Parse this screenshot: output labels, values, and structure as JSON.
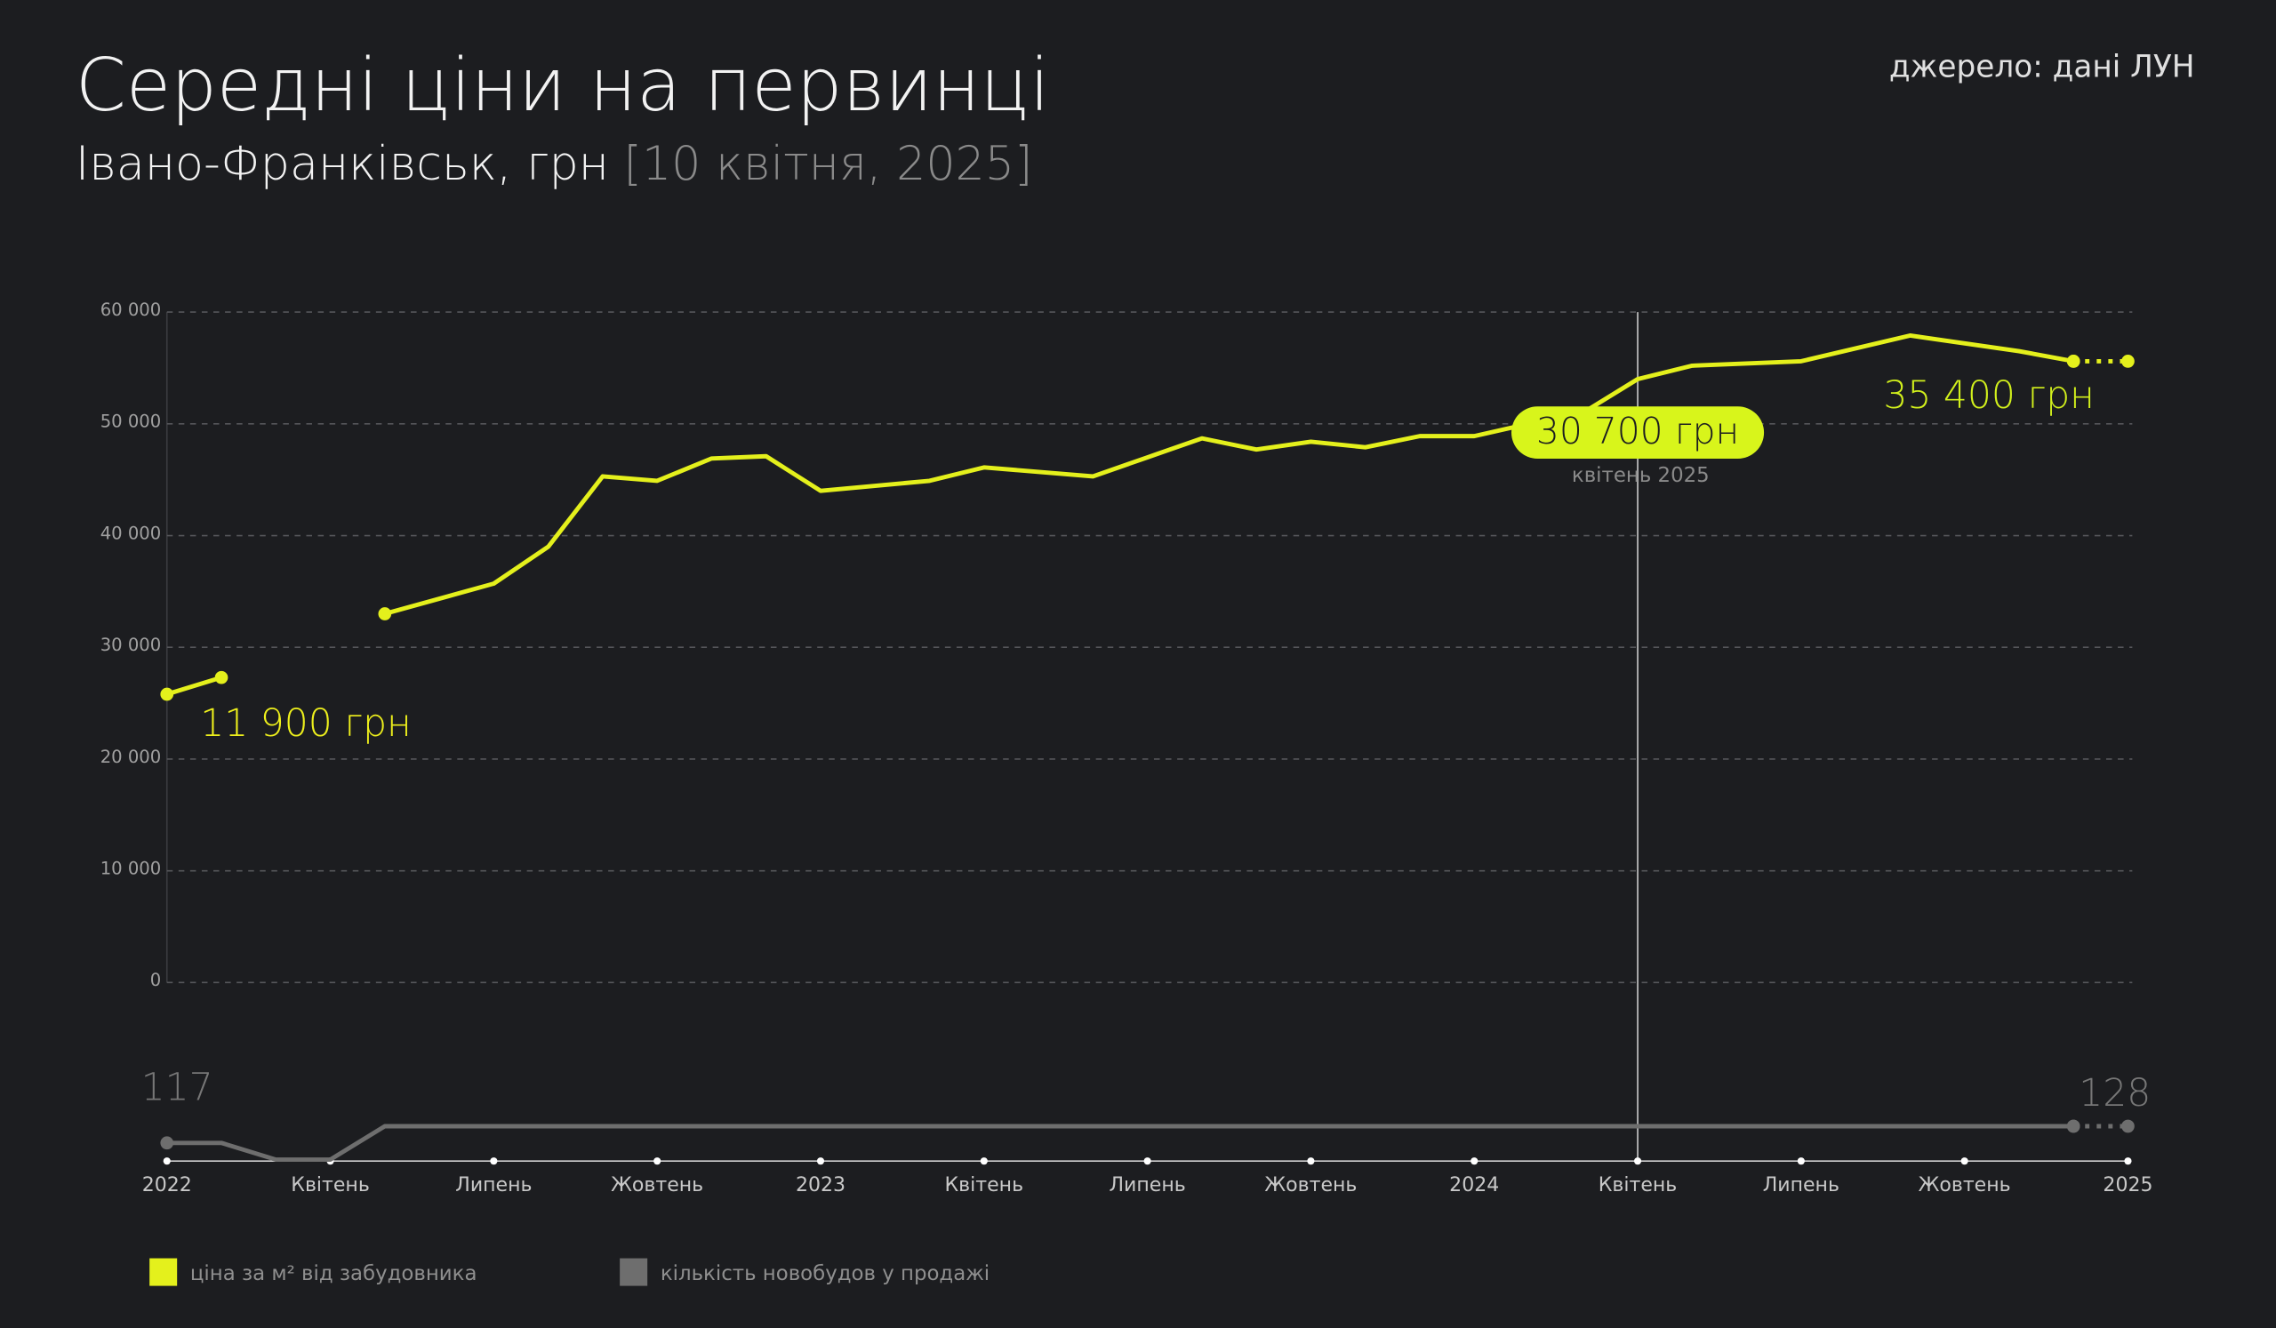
{
  "chart_data": {
    "type": "line",
    "title": "Середні ціни на первинці",
    "subtitle": "Івано-Франківськ, грн",
    "date": "[10 квітня, 2025]",
    "source": "джерело: дані ЛУН",
    "xlim": [
      "2022-01",
      "2025-01"
    ],
    "xticks": [
      {
        "value": "2022-01",
        "label": "2022"
      },
      {
        "value": "2022-04",
        "label": "Квітень"
      },
      {
        "value": "2022-07",
        "label": "Липень"
      },
      {
        "value": "2022-10",
        "label": "Жовтень"
      },
      {
        "value": "2023-01",
        "label": "2023"
      },
      {
        "value": "2023-04",
        "label": "Квітень"
      },
      {
        "value": "2023-07",
        "label": "Липень"
      },
      {
        "value": "2023-10",
        "label": "Жовтень"
      },
      {
        "value": "2024-01",
        "label": "2024"
      },
      {
        "value": "2024-04",
        "label": "Квітень"
      },
      {
        "value": "2024-07",
        "label": "Липень"
      },
      {
        "value": "2024-10",
        "label": "Жовтень"
      },
      {
        "value": "2025-01",
        "label": "2025"
      }
    ],
    "ylim": [
      0,
      60000
    ],
    "yticks": [
      0,
      {
        "value": 10000,
        "label": "10 000"
      },
      {
        "value": 20000,
        "label": "20 000"
      },
      {
        "value": 30000,
        "label": "30 000"
      },
      {
        "value": 40000,
        "label": "40 000"
      },
      {
        "value": 50000,
        "label": "50 000"
      },
      {
        "value": 60000,
        "label": "60 000"
      }
    ],
    "y2lim": [
      106,
      128
    ],
    "grid": true,
    "series": [
      {
        "name": "ціна за м² від забудовника",
        "color": "#e4f01c",
        "x": [
          "2022-01",
          "2022-02",
          "2022-03",
          "2022-05",
          "2022-07",
          "2022-08",
          "2022-09",
          "2022-10",
          "2022-11",
          "2022-12",
          "2023-01",
          "2023-03",
          "2023-04",
          "2023-06",
          "2023-07",
          "2023-08",
          "2023-09",
          "2023-10",
          "2023-11",
          "2023-12",
          "2024-01",
          "2024-02",
          "2024-03",
          "2024-04",
          "2024-05",
          "2024-07",
          "2024-09",
          "2024-11",
          "2024-12"
        ],
        "values": [
          25800,
          27300,
          null,
          33000,
          35700,
          39000,
          45300,
          44900,
          46900,
          47100,
          44000,
          44900,
          46100,
          45300,
          47000,
          48700,
          47700,
          48400,
          47900,
          48900,
          48900,
          50000,
          51000,
          54000,
          55200,
          55600,
          57900,
          56500,
          55600
        ]
      },
      {
        "name": "кількість новобудов у продажі",
        "color": "#6e6e6e",
        "axis": "y2",
        "x": [
          "2022-01",
          "2022-02",
          "2022-03",
          "2022-04",
          "2022-05",
          "2024-12"
        ],
        "values": [
          117,
          117,
          106,
          106,
          128,
          128
        ]
      },
      {
        "color": "#e4f01c",
        "style": "dotted",
        "x": [
          "2024-12",
          "2025-01"
        ],
        "values": [
          55600,
          55600
        ]
      },
      {
        "color": "#6e6e6e",
        "style": "dotted",
        "axis": "y2",
        "x": [
          "2024-12",
          "2025-01"
        ],
        "values": [
          128,
          128
        ]
      }
    ],
    "cursor": {
      "x": "2024-04",
      "label": "30 700 грн",
      "sublabel": "квітень 2025",
      "color": "#d8f51b"
    },
    "annotations": [
      "11 900 грн",
      "35 400 грн"
    ]
  }
}
